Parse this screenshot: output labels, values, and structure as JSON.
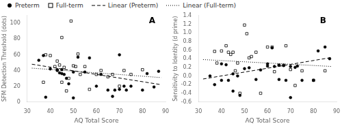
{
  "chart_data": [
    {
      "type": "scatter",
      "xlabel": "AQ Total Score",
      "ylabel": "SFM Detection Threshold (dots)",
      "xlim": [
        30,
        90
      ],
      "ylim": [
        0,
        110
      ],
      "xticks": [
        30,
        40,
        50,
        60,
        70,
        80,
        90
      ],
      "yticks": [
        0,
        20,
        40,
        60,
        80,
        100
      ],
      "grid": false,
      "legend": "upper left",
      "annotations": [
        {
          "text": "A"
        }
      ],
      "series": [
        {
          "name": "Preterm",
          "type": "scatter",
          "marker": "circle",
          "color": "#000000",
          "x": [
            35,
            37,
            38,
            40,
            43,
            43,
            44,
            45,
            45,
            46,
            47,
            48,
            50,
            50,
            52,
            55,
            57,
            60,
            62,
            65,
            67,
            68,
            70,
            70,
            72,
            73,
            75,
            80,
            82,
            85,
            87
          ],
          "values": [
            53,
            59,
            6,
            42,
            41,
            40,
            37,
            41,
            36,
            35,
            30,
            23,
            38,
            5,
            57,
            38,
            56,
            20,
            35,
            15,
            7,
            15,
            60,
            16,
            20,
            15,
            20,
            15,
            36,
            19,
            39
          ]
        },
        {
          "name": "Full-term",
          "type": "scatter",
          "marker": "square",
          "color": "#000000",
          "x": [
            37,
            38,
            40,
            42,
            43,
            44,
            45,
            45,
            46,
            47,
            48,
            49,
            50,
            51,
            52,
            53,
            55,
            57,
            60,
            62,
            65,
            67,
            70,
            72,
            75,
            80
          ],
          "values": [
            25,
            60,
            59,
            45,
            52,
            47,
            82,
            25,
            44,
            14,
            30,
            103,
            46,
            45,
            61,
            35,
            45,
            16,
            35,
            40,
            32,
            35,
            20,
            40,
            35,
            41
          ]
        },
        {
          "name": "Linear (Preterm)",
          "type": "line",
          "line_style": "dashed",
          "color": "#000000",
          "x": [
            32,
            88
          ],
          "values": [
            48,
            22
          ]
        },
        {
          "name": "Linear (Full-term)",
          "type": "line",
          "line_style": "dotted",
          "color": "#000000",
          "x": [
            32,
            88
          ],
          "values": [
            43,
            31
          ]
        }
      ]
    },
    {
      "type": "scatter",
      "xlabel": "AQ Total Score",
      "ylabel": "Sensitivity to Identity (d prime)",
      "xlim": [
        30,
        90
      ],
      "ylim": [
        -0.6,
        1.4
      ],
      "xticks": [
        30,
        40,
        50,
        60,
        70,
        80,
        90
      ],
      "yticks": [
        -0.6,
        -0.4,
        -0.2,
        {
          "value": 0,
          "label": "0.0"
        },
        0.2,
        0.4,
        0.6,
        0.8,
        {
          "value": 1,
          "label": "1.0"
        },
        1.2,
        1.4
      ],
      "grid": false,
      "annotations": [
        {
          "text": "B"
        }
      ],
      "series": [
        {
          "name": "Preterm",
          "type": "scatter",
          "marker": "circle",
          "color": "#000000",
          "x": [
            35,
            37,
            40,
            40,
            42,
            43,
            45,
            45,
            47,
            48,
            50,
            52,
            55,
            57,
            60,
            60,
            62,
            63,
            65,
            65,
            67,
            68,
            70,
            70,
            72,
            73,
            75,
            80,
            82,
            85,
            87
          ],
          "values": [
            0.0,
            -0.2,
            -0.1,
            0.28,
            0.26,
            -0.1,
            0.05,
            -0.35,
            0.0,
            -0.45,
            0.17,
            0.19,
            -0.08,
            0.14,
            0.28,
            0.23,
            0.65,
            0.22,
            0.25,
            -0.08,
            0.24,
            -0.1,
            0.22,
            -0.5,
            0.2,
            0.23,
            -0.1,
            -0.1,
            0.58,
            0.67,
            0.4
          ]
        },
        {
          "name": "Full-term",
          "type": "scatter",
          "marker": "square",
          "color": "#000000",
          "x": [
            37,
            38,
            40,
            42,
            43,
            44,
            45,
            46,
            47,
            48,
            50,
            51,
            52,
            53,
            55,
            57,
            60,
            62,
            63,
            65,
            67,
            68,
            70,
            72,
            75,
            80,
            85
          ],
          "values": [
            0.57,
            0.3,
            0.58,
            0.7,
            0.55,
            0.5,
            0.55,
            0.12,
            0.3,
            -0.4,
            1.18,
            0.98,
            0.42,
            0.45,
            0.55,
            -0.4,
            0.67,
            0.67,
            0.1,
            0.25,
            0.25,
            0.7,
            0.15,
            -0.22,
            0.12,
            -0.1,
            0.12
          ]
        },
        {
          "name": "Linear (Preterm)",
          "type": "line",
          "line_style": "dashed",
          "color": "#000000",
          "x": [
            32,
            88
          ],
          "values": [
            -0.07,
            0.43
          ]
        },
        {
          "name": "Linear (Full-term)",
          "type": "line",
          "line_style": "dotted",
          "color": "#000000",
          "x": [
            32,
            88
          ],
          "values": [
            0.38,
            0.22
          ]
        }
      ]
    }
  ]
}
